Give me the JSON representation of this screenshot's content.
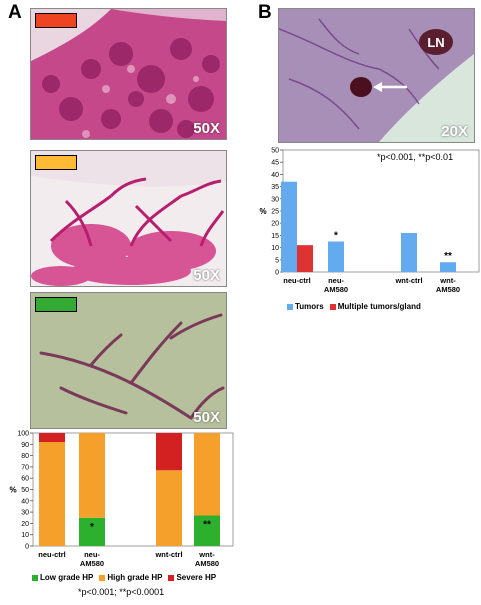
{
  "figure": {
    "panel_a_label": "A",
    "panel_b_label": "B",
    "magnification_a1": "50X",
    "magnification_a2": "50X",
    "magnification_a3": "50X",
    "magnification_b": "20X",
    "ln_label": "LN",
    "swatch_colors": [
      "#ee4422",
      "#ffbb33",
      "#33aa33"
    ],
    "note_a": "*p<0.001; **p<0.0001",
    "note_b": "*p<0.001, **p<0.01"
  },
  "chart_data": [
    {
      "type": "bar",
      "stacked": true,
      "categories": [
        "neu-ctrl",
        "neu-AM580",
        "wnt-ctrl",
        "wnt-AM580"
      ],
      "category_lines": [
        [
          "neu-ctrl"
        ],
        [
          "neu-",
          "AM580"
        ],
        [
          "wnt-ctrl"
        ],
        [
          "wnt-",
          "AM580"
        ]
      ],
      "series": [
        {
          "name": "Low grade HP",
          "color": "#2db02d",
          "values": [
            0,
            25,
            0,
            27
          ]
        },
        {
          "name": "High grade HP",
          "color": "#f5a02a",
          "values": [
            92,
            75,
            67,
            73
          ]
        },
        {
          "name": "Severe HP",
          "color": "#d32020",
          "values": [
            8,
            0,
            33,
            0
          ]
        }
      ],
      "annotations": [
        "",
        "*",
        "",
        "**"
      ],
      "ylabel": "%",
      "ylim": [
        0,
        100
      ],
      "yticks": [
        0,
        10,
        20,
        30,
        40,
        50,
        60,
        70,
        80,
        90,
        100
      ],
      "grid": false,
      "legend_position": "bottom"
    },
    {
      "type": "bar",
      "stacked": false,
      "categories": [
        "neu-ctrl",
        "neu-AM580",
        "wnt-ctrl",
        "wnt-AM580"
      ],
      "category_lines": [
        [
          "neu-ctrl"
        ],
        [
          "neu-",
          "AM580"
        ],
        [
          "wnt-ctrl"
        ],
        [
          "wnt-",
          "AM580"
        ]
      ],
      "series": [
        {
          "name": "Tumors",
          "color": "#64aaee",
          "values": [
            37,
            12.5,
            16,
            4
          ]
        },
        {
          "name": "Multiple tumors/gland",
          "color": "#dd3333",
          "values": [
            11,
            null,
            null,
            null
          ]
        }
      ],
      "annotations": [
        "",
        "*",
        "",
        "**"
      ],
      "ylabel": "%",
      "ylim": [
        0,
        50
      ],
      "yticks": [
        0,
        5,
        10,
        15,
        20,
        25,
        30,
        35,
        40,
        45,
        50
      ],
      "grid": false,
      "legend_position": "bottom"
    }
  ]
}
